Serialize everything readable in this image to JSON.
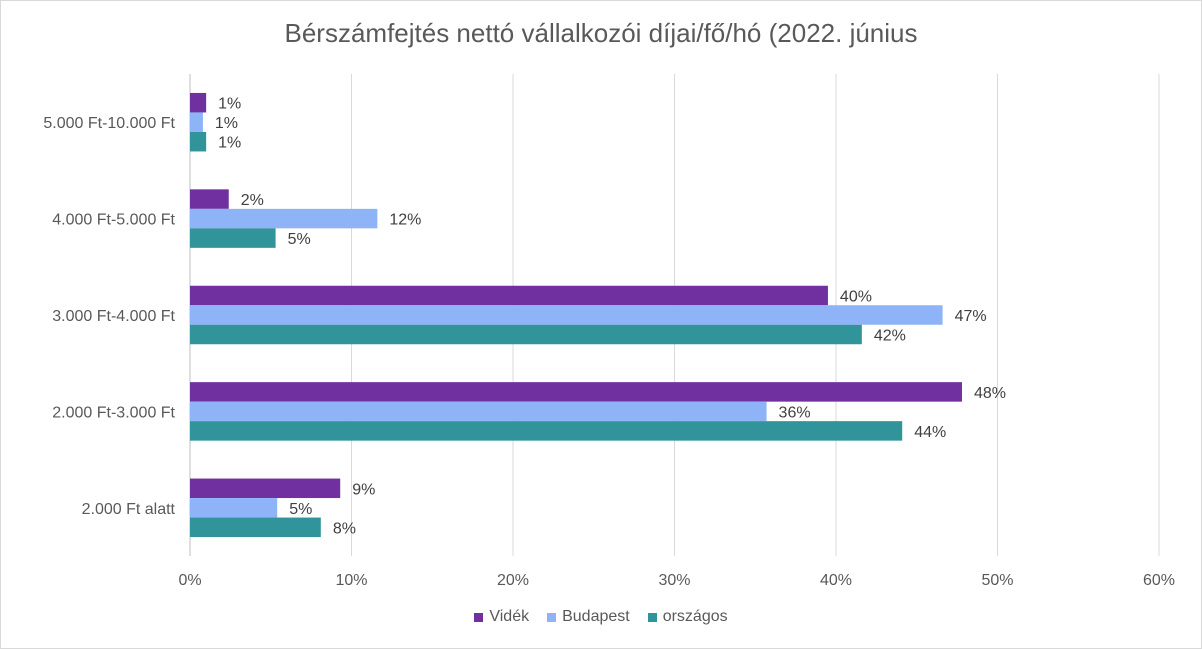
{
  "chart_data": {
    "type": "bar",
    "orientation": "horizontal",
    "title": "Bérszámfejtés nettó vállalkozói díjai/fő/hó (2022. június",
    "categories": [
      "5.000 Ft-10.000 Ft",
      "4.000 Ft-5.000 Ft",
      "3.000 Ft-4.000 Ft",
      "2.000 Ft-3.000 Ft",
      "2.000 Ft alatt"
    ],
    "series": [
      {
        "name": "Vidék",
        "color": "#7030a0",
        "values": [
          1,
          2.4,
          39.5,
          47.8,
          9.3
        ],
        "labels": [
          "1%",
          "2%",
          "40%",
          "48%",
          "9%"
        ]
      },
      {
        "name": "Budapest",
        "color": "#8eb4f7",
        "values": [
          0.8,
          11.6,
          46.6,
          35.7,
          5.4
        ],
        "labels": [
          "1%",
          "12%",
          "47%",
          "36%",
          "5%"
        ]
      },
      {
        "name": "országos",
        "color": "#31949a",
        "values": [
          1,
          5.3,
          41.6,
          44.1,
          8.1
        ],
        "labels": [
          "1%",
          "5%",
          "42%",
          "44%",
          "8%"
        ]
      }
    ],
    "xlim": [
      0,
      60
    ],
    "xticks": [
      "0%",
      "10%",
      "20%",
      "30%",
      "40%",
      "50%",
      "60%"
    ],
    "grid": true,
    "legend_position": "bottom"
  }
}
